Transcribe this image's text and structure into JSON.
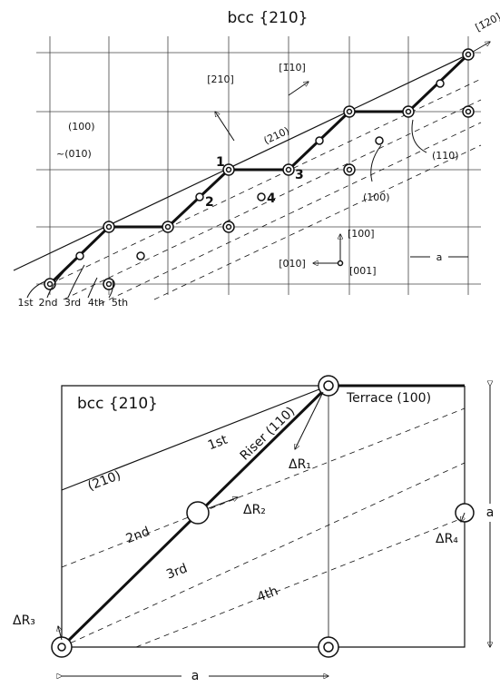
{
  "top": {
    "title": "bcc {210}",
    "directions": [
      "[1̄20]",
      "[210]",
      "[1̄10]",
      "[100]",
      "[010]",
      "[001]"
    ],
    "planes": [
      "(100)",
      "~(010)",
      "(210)",
      "(110)",
      "(100)"
    ],
    "sites": [
      "1",
      "2",
      "3",
      "4"
    ],
    "spacing": "a",
    "rows": [
      "1st",
      "2nd",
      "3rd",
      "4th",
      "5th"
    ]
  },
  "bottom": {
    "title": "bcc {210}",
    "terrace": "Terrace (100)",
    "riser": "Riser (110)",
    "plane": "(210)",
    "rows": [
      "1st",
      "2nd",
      "3rd",
      "4th"
    ],
    "displacements": [
      "ΔR₁",
      "ΔR₂",
      "ΔR₃",
      "ΔR₄"
    ],
    "spacing_vertical": "a",
    "spacing_horizontal": "a"
  }
}
